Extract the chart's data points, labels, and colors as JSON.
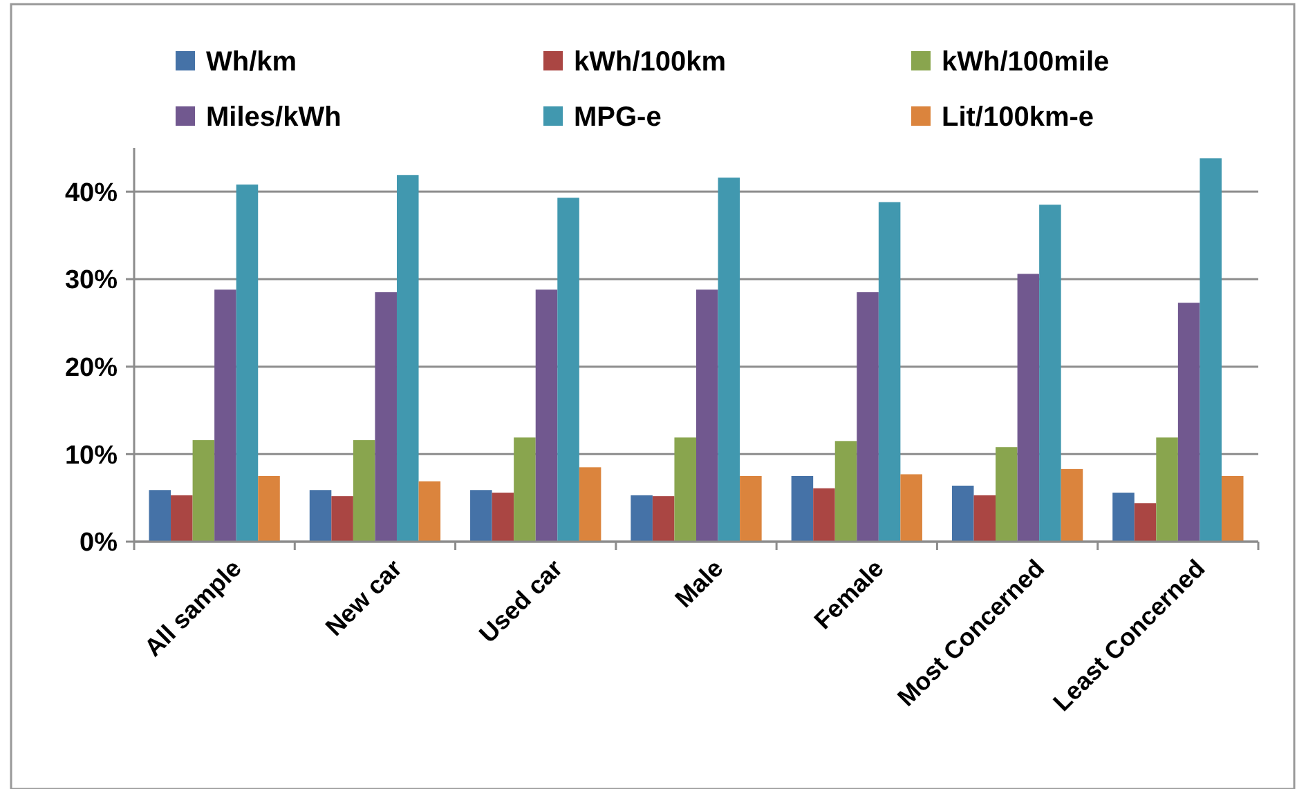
{
  "chart_data": {
    "type": "bar",
    "categories": [
      "All sample",
      "New car",
      "Used car",
      "Male",
      "Female",
      "Most Concerned",
      "Least Concerned"
    ],
    "series": [
      {
        "name": "Wh/km",
        "color": "#4572a7",
        "values": [
          5.9,
          5.9,
          5.9,
          5.3,
          7.5,
          6.4,
          5.6
        ]
      },
      {
        "name": "kWh/100km",
        "color": "#aa4643",
        "values": [
          5.3,
          5.2,
          5.6,
          5.2,
          6.1,
          5.3,
          4.4
        ]
      },
      {
        "name": "kWh/100mile",
        "color": "#89a54e",
        "values": [
          11.6,
          11.6,
          11.9,
          11.9,
          11.5,
          10.8,
          11.9
        ]
      },
      {
        "name": "Miles/kWh",
        "color": "#71588f",
        "values": [
          28.8,
          28.5,
          28.8,
          28.8,
          28.5,
          30.6,
          27.3
        ]
      },
      {
        "name": "MPG-e",
        "color": "#4198af",
        "values": [
          40.8,
          41.9,
          39.3,
          41.6,
          38.8,
          38.5,
          43.8
        ]
      },
      {
        "name": "Lit/100km-e",
        "color": "#db843d",
        "values": [
          7.5,
          6.9,
          8.5,
          7.5,
          7.7,
          8.3,
          7.5
        ]
      }
    ],
    "ylim": [
      0,
      45
    ],
    "yticks": [
      {
        "value": 0,
        "label": "0%"
      },
      {
        "value": 10,
        "label": "10%"
      },
      {
        "value": 20,
        "label": "20%"
      },
      {
        "value": 30,
        "label": "30%"
      },
      {
        "value": 40,
        "label": "40%"
      }
    ],
    "grid": "y",
    "legend": "top"
  }
}
